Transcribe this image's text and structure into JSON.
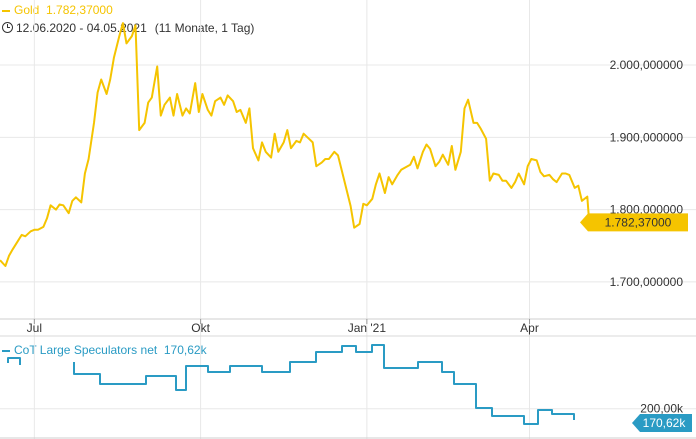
{
  "header": {
    "series_label": "Gold",
    "series_value": "1.782,37000",
    "date_range": "12.06.2020 - 04.05.2021",
    "duration": "(11 Monate, 1 Tag)"
  },
  "lower_header": {
    "label": "CoT Large Speculators net",
    "value": "170,62k"
  },
  "colors": {
    "gold": "#f5c400",
    "cot": "#2a9bc4",
    "grid": "#e8e8e8"
  },
  "chart_data": [
    {
      "type": "line",
      "series": [
        {
          "name": "Gold",
          "color": "#f5c400"
        }
      ],
      "ylim": [
        1650,
        2090
      ],
      "yticks": [
        1700,
        1800,
        1900,
        2000
      ],
      "ytick_labels": [
        "1.700,000000",
        "1.800,000000",
        "1.900,000000",
        "2.000,000000"
      ],
      "xticks": [
        "2020-07-01",
        "2020-10-01",
        "2021-01-01",
        "2021-04-01"
      ],
      "xtick_labels": [
        "Jul",
        "Okt",
        "Jan '21",
        "Apr"
      ],
      "xlim": [
        "2020-06-12",
        "2021-05-10"
      ],
      "last_value_label": "1.782,37000",
      "points": [
        [
          "2020-06-12",
          1730
        ],
        [
          "2020-06-15",
          1722
        ],
        [
          "2020-06-17",
          1736
        ],
        [
          "2020-06-19",
          1745
        ],
        [
          "2020-06-22",
          1757
        ],
        [
          "2020-06-24",
          1765
        ],
        [
          "2020-06-26",
          1763
        ],
        [
          "2020-06-29",
          1770
        ],
        [
          "2020-07-01",
          1772
        ],
        [
          "2020-07-03",
          1772
        ],
        [
          "2020-07-06",
          1776
        ],
        [
          "2020-07-08",
          1788
        ],
        [
          "2020-07-10",
          1806
        ],
        [
          "2020-07-13",
          1800
        ],
        [
          "2020-07-15",
          1807
        ],
        [
          "2020-07-17",
          1806
        ],
        [
          "2020-07-20",
          1795
        ],
        [
          "2020-07-22",
          1812
        ],
        [
          "2020-07-24",
          1817
        ],
        [
          "2020-07-27",
          1810
        ],
        [
          "2020-07-29",
          1850
        ],
        [
          "2020-07-31",
          1870
        ],
        [
          "2020-08-03",
          1920
        ],
        [
          "2020-08-05",
          1962
        ],
        [
          "2020-08-07",
          1980
        ],
        [
          "2020-08-10",
          1960
        ],
        [
          "2020-08-12",
          1980
        ],
        [
          "2020-08-14",
          2010
        ],
        [
          "2020-08-17",
          2040
        ],
        [
          "2020-08-19",
          2058
        ],
        [
          "2020-08-21",
          2030
        ],
        [
          "2020-08-24",
          2040
        ],
        [
          "2020-08-26",
          2055
        ],
        [
          "2020-08-28",
          1910
        ],
        [
          "2020-08-31",
          1920
        ],
        [
          "2020-09-02",
          1948
        ],
        [
          "2020-09-04",
          1955
        ],
        [
          "2020-09-07",
          1998
        ],
        [
          "2020-09-09",
          1930
        ],
        [
          "2020-09-11",
          1945
        ],
        [
          "2020-09-14",
          1955
        ],
        [
          "2020-09-16",
          1930
        ],
        [
          "2020-09-18",
          1960
        ],
        [
          "2020-09-21",
          1930
        ],
        [
          "2020-09-23",
          1940
        ],
        [
          "2020-09-25",
          1933
        ],
        [
          "2020-09-28",
          1975
        ],
        [
          "2020-09-30",
          1935
        ],
        [
          "2020-10-02",
          1960
        ],
        [
          "2020-10-05",
          1938
        ],
        [
          "2020-10-07",
          1930
        ],
        [
          "2020-10-09",
          1950
        ],
        [
          "2020-10-12",
          1955
        ],
        [
          "2020-10-14",
          1945
        ],
        [
          "2020-10-16",
          1958
        ],
        [
          "2020-10-19",
          1950
        ],
        [
          "2020-10-21",
          1935
        ],
        [
          "2020-10-23",
          1938
        ],
        [
          "2020-10-26",
          1920
        ],
        [
          "2020-10-28",
          1940
        ],
        [
          "2020-10-30",
          1885
        ],
        [
          "2020-11-02",
          1868
        ],
        [
          "2020-11-04",
          1893
        ],
        [
          "2020-11-06",
          1880
        ],
        [
          "2020-11-09",
          1872
        ],
        [
          "2020-11-11",
          1905
        ],
        [
          "2020-11-13",
          1880
        ],
        [
          "2020-11-16",
          1893
        ],
        [
          "2020-11-18",
          1910
        ],
        [
          "2020-11-20",
          1885
        ],
        [
          "2020-11-23",
          1895
        ],
        [
          "2020-11-25",
          1893
        ],
        [
          "2020-11-27",
          1905
        ],
        [
          "2020-11-30",
          1898
        ],
        [
          "2020-12-02",
          1893
        ],
        [
          "2020-12-04",
          1860
        ],
        [
          "2020-12-07",
          1865
        ],
        [
          "2020-12-09",
          1870
        ],
        [
          "2020-12-11",
          1870
        ],
        [
          "2020-12-14",
          1880
        ],
        [
          "2020-12-16",
          1875
        ],
        [
          "2020-12-18",
          1855
        ],
        [
          "2020-12-21",
          1825
        ],
        [
          "2020-12-23",
          1805
        ],
        [
          "2020-12-25",
          1775
        ],
        [
          "2020-12-28",
          1780
        ],
        [
          "2020-12-30",
          1808
        ],
        [
          "2021-01-01",
          1806
        ],
        [
          "2021-01-04",
          1815
        ],
        [
          "2021-01-06",
          1835
        ],
        [
          "2021-01-08",
          1850
        ],
        [
          "2021-01-11",
          1823
        ],
        [
          "2021-01-13",
          1845
        ],
        [
          "2021-01-15",
          1835
        ],
        [
          "2021-01-18",
          1848
        ],
        [
          "2021-01-20",
          1855
        ],
        [
          "2021-01-22",
          1858
        ],
        [
          "2021-01-25",
          1862
        ],
        [
          "2021-01-27",
          1873
        ],
        [
          "2021-01-29",
          1857
        ],
        [
          "2021-02-01",
          1880
        ],
        [
          "2021-02-03",
          1890
        ],
        [
          "2021-02-05",
          1884
        ],
        [
          "2021-02-08",
          1860
        ],
        [
          "2021-02-10",
          1866
        ],
        [
          "2021-02-12",
          1876
        ],
        [
          "2021-02-15",
          1862
        ],
        [
          "2021-02-17",
          1888
        ],
        [
          "2021-02-19",
          1855
        ],
        [
          "2021-02-22",
          1880
        ],
        [
          "2021-02-24",
          1940
        ],
        [
          "2021-02-26",
          1952
        ],
        [
          "2021-03-01",
          1920
        ],
        [
          "2021-03-03",
          1920
        ],
        [
          "2021-03-05",
          1912
        ],
        [
          "2021-03-08",
          1898
        ],
        [
          "2021-03-10",
          1840
        ],
        [
          "2021-03-12",
          1850
        ],
        [
          "2021-03-15",
          1848
        ],
        [
          "2021-03-17",
          1840
        ],
        [
          "2021-03-19",
          1840
        ],
        [
          "2021-03-22",
          1830
        ],
        [
          "2021-03-24",
          1838
        ],
        [
          "2021-03-26",
          1850
        ],
        [
          "2021-03-29",
          1835
        ],
        [
          "2021-03-31",
          1860
        ],
        [
          "2021-04-02",
          1870
        ],
        [
          "2021-04-05",
          1868
        ],
        [
          "2021-04-07",
          1852
        ],
        [
          "2021-04-09",
          1846
        ],
        [
          "2021-04-12",
          1848
        ],
        [
          "2021-04-14",
          1842
        ],
        [
          "2021-04-16",
          1838
        ],
        [
          "2021-04-19",
          1850
        ],
        [
          "2021-04-21",
          1850
        ],
        [
          "2021-04-23",
          1848
        ],
        [
          "2021-04-26",
          1830
        ],
        [
          "2021-04-28",
          1833
        ],
        [
          "2021-04-30",
          1812
        ],
        [
          "2021-05-03",
          1818
        ],
        [
          "2021-05-04",
          1782.37
        ]
      ]
    },
    {
      "type": "line",
      "series": [
        {
          "name": "CoT Large Speculators net",
          "color": "#2a9bc4"
        }
      ],
      "yticks": [
        200
      ],
      "ytick_labels": [
        "200,00k"
      ],
      "last_value_label": "170,62k"
    }
  ]
}
